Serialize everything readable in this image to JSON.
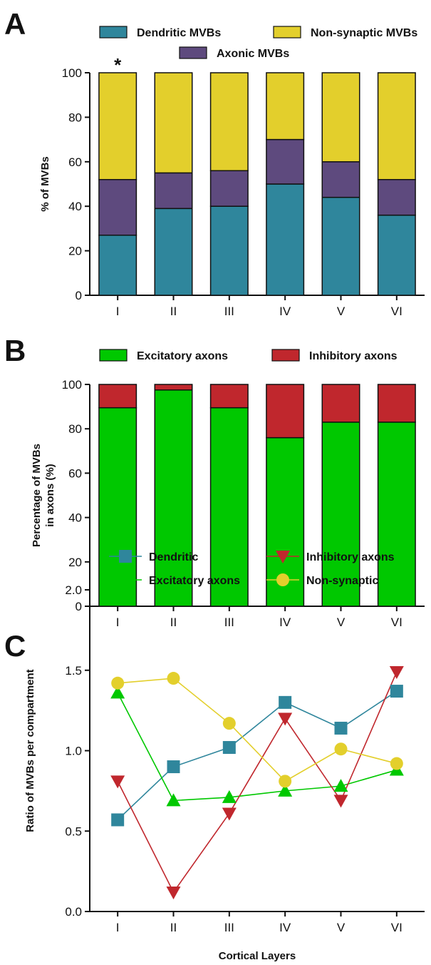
{
  "chart_data": [
    {
      "panel": "A",
      "type": "bar",
      "stacked": true,
      "categories": [
        "I",
        "II",
        "III",
        "IV",
        "V",
        "VI"
      ],
      "series": [
        {
          "name": "Dendritic MVBs",
          "color": "#2f869c",
          "values": [
            27,
            39,
            40,
            50,
            44,
            36
          ]
        },
        {
          "name": "Axonic MVBs",
          "color": "#5e4a7e",
          "values": [
            25,
            16,
            16,
            20,
            16,
            16
          ]
        },
        {
          "name": "Non-synaptic MVBs",
          "color": "#e3cf2c",
          "values": [
            48,
            45,
            44,
            30,
            40,
            48
          ]
        }
      ],
      "ylabel": "% of MVBs",
      "ylim": [
        0,
        100
      ],
      "yticks": [
        0,
        20,
        40,
        60,
        80,
        100
      ],
      "annotations": [
        {
          "text": "*",
          "category": "I"
        }
      ],
      "legend": "top"
    },
    {
      "panel": "B",
      "type": "bar",
      "stacked": true,
      "categories": [
        "I",
        "II",
        "III",
        "IV",
        "V",
        "VI"
      ],
      "series": [
        {
          "name": "Excitatory axons",
          "color": "#00c800",
          "values": [
            89.5,
            97.5,
            89.5,
            76,
            83,
            83
          ]
        },
        {
          "name": "Inhibitory axons",
          "color": "#c0272d",
          "values": [
            10.5,
            2.5,
            10.5,
            24,
            17,
            17
          ]
        }
      ],
      "ylabel_lines": [
        "Percentage of MVBs",
        "in axons (%)"
      ],
      "ylim": [
        0,
        100
      ],
      "yticks": [
        0,
        20,
        40,
        60,
        80,
        100
      ],
      "legend": "top"
    },
    {
      "panel": "C",
      "type": "line",
      "categories": [
        "I",
        "II",
        "III",
        "IV",
        "V",
        "VI"
      ],
      "series": [
        {
          "name": "Dendritic",
          "color": "#2f869c",
          "marker": "square",
          "values": [
            0.57,
            0.9,
            1.02,
            1.3,
            1.14,
            1.37
          ]
        },
        {
          "name": "Excitatory axons",
          "color": "#00c800",
          "marker": "triangle-up",
          "values": [
            1.36,
            0.69,
            0.71,
            0.75,
            0.78,
            0.88
          ]
        },
        {
          "name": "Inhibitory axons",
          "color": "#c0272d",
          "marker": "triangle-down",
          "values": [
            0.81,
            0.12,
            0.61,
            1.2,
            0.69,
            1.49
          ]
        },
        {
          "name": "Non-synaptic",
          "color": "#e3cf2c",
          "marker": "circle",
          "values": [
            1.42,
            1.45,
            1.17,
            0.81,
            1.01,
            0.92
          ]
        }
      ],
      "ylabel": "Ratio of MVBs per compartment",
      "xlabel": "Cortical Layers",
      "ylim": [
        0,
        2.0
      ],
      "yticks": [
        "0.0",
        "0.5",
        "1.0",
        "1.5",
        "2.0"
      ],
      "legend": "top"
    }
  ]
}
